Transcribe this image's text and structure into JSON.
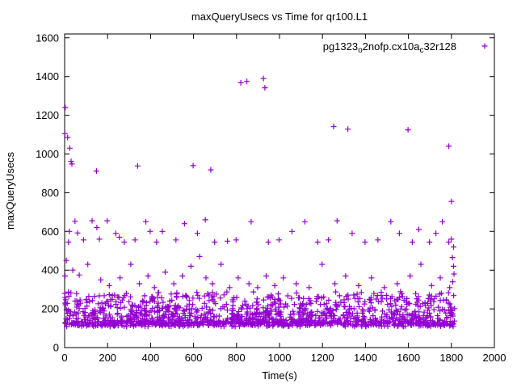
{
  "chart_data": {
    "type": "scatter",
    "title": "maxQueryUsecs vs Time for qr100.L1",
    "xlabel": "Time(s)",
    "ylabel": "maxQueryUsecs",
    "xlim": [
      0,
      2000
    ],
    "ylim": [
      0,
      1620
    ],
    "xticks": [
      0,
      200,
      400,
      600,
      800,
      1000,
      1200,
      1400,
      1600,
      1800,
      2000
    ],
    "yticks": [
      0,
      200,
      400,
      600,
      800,
      1000,
      1200,
      1400,
      1600
    ],
    "grid": false,
    "marker": "plus",
    "color": "#9400d3",
    "legend": {
      "label": "pg1323o2nofp.cx10ac32r128",
      "position": "top-right-inside",
      "parts": [
        {
          "text": "pg1323"
        },
        {
          "text": "o",
          "sub": true
        },
        {
          "text": "2nofp.cx10a"
        },
        {
          "text": "c",
          "sub": true
        },
        {
          "text": "32r128"
        }
      ]
    },
    "series": [
      {
        "name": "pg1323o2nofp.cx10ac32r128",
        "outlier_points": [
          [
            3,
            1240
          ],
          [
            1,
            1105
          ],
          [
            14,
            1085
          ],
          [
            24,
            1030
          ],
          [
            30,
            962
          ],
          [
            34,
            948
          ],
          [
            148,
            912
          ],
          [
            340,
            938
          ],
          [
            598,
            940
          ],
          [
            680,
            918
          ],
          [
            820,
            1368
          ],
          [
            848,
            1375
          ],
          [
            925,
            1390
          ],
          [
            932,
            1342
          ],
          [
            1252,
            1142
          ],
          [
            1318,
            1128
          ],
          [
            1598,
            1125
          ],
          [
            1788,
            1040
          ],
          [
            1800,
            755
          ],
          [
            18,
            545
          ],
          [
            22,
            600
          ],
          [
            48,
            652
          ],
          [
            60,
            592
          ],
          [
            88,
            556
          ],
          [
            128,
            655
          ],
          [
            150,
            620
          ],
          [
            162,
            560
          ],
          [
            198,
            655
          ],
          [
            238,
            590
          ],
          [
            255,
            570
          ],
          [
            278,
            545
          ],
          [
            328,
            556
          ],
          [
            378,
            650
          ],
          [
            398,
            600
          ],
          [
            428,
            545
          ],
          [
            455,
            600
          ],
          [
            518,
            556
          ],
          [
            558,
            640
          ],
          [
            618,
            590
          ],
          [
            655,
            660
          ],
          [
            698,
            545
          ],
          [
            758,
            550
          ],
          [
            798,
            556
          ],
          [
            868,
            650
          ],
          [
            948,
            545
          ],
          [
            998,
            556
          ],
          [
            1058,
            600
          ],
          [
            1118,
            650
          ],
          [
            1178,
            545
          ],
          [
            1228,
            556
          ],
          [
            1268,
            655
          ],
          [
            1338,
            590
          ],
          [
            1398,
            545
          ],
          [
            1458,
            556
          ],
          [
            1518,
            650
          ],
          [
            1558,
            590
          ],
          [
            1618,
            545
          ],
          [
            1648,
            610
          ],
          [
            1698,
            545
          ],
          [
            1728,
            590
          ],
          [
            1758,
            650
          ],
          [
            1788,
            545
          ],
          [
            1800,
            560
          ],
          [
            1805,
            465
          ],
          [
            1810,
            520
          ],
          [
            2,
            370
          ],
          [
            8,
            450
          ],
          [
            38,
            400
          ],
          [
            68,
            375
          ],
          [
            108,
            430
          ],
          [
            168,
            350
          ],
          [
            208,
            320
          ],
          [
            258,
            360
          ],
          [
            308,
            430
          ],
          [
            348,
            330
          ],
          [
            388,
            370
          ],
          [
            418,
            310
          ],
          [
            468,
            390
          ],
          [
            508,
            330
          ],
          [
            548,
            370
          ],
          [
            588,
            420
          ],
          [
            628,
            470
          ],
          [
            658,
            360
          ],
          [
            688,
            330
          ],
          [
            728,
            430
          ],
          [
            768,
            310
          ],
          [
            808,
            360
          ],
          [
            858,
            330
          ],
          [
            898,
            310
          ],
          [
            938,
            370
          ],
          [
            978,
            320
          ],
          [
            1018,
            360
          ],
          [
            1078,
            330
          ],
          [
            1138,
            310
          ],
          [
            1198,
            430
          ],
          [
            1258,
            330
          ],
          [
            1308,
            370
          ],
          [
            1368,
            320
          ],
          [
            1428,
            360
          ],
          [
            1488,
            310
          ],
          [
            1548,
            330
          ],
          [
            1608,
            370
          ],
          [
            1658,
            430
          ],
          [
            1708,
            320
          ],
          [
            1748,
            360
          ],
          [
            1792,
            310
          ],
          [
            1806,
            340
          ],
          [
            1810,
            420
          ],
          [
            1812,
            380
          ],
          [
            1,
            280
          ],
          [
            2,
            258
          ],
          [
            4,
            230
          ]
        ],
        "dense_band": {
          "count": 1400,
          "seed": 42,
          "x_min": 0,
          "x_max": 1815,
          "y_min": 108,
          "y_jitter": 25,
          "y_spread": 160,
          "y_power": 2.8
        }
      }
    ]
  }
}
